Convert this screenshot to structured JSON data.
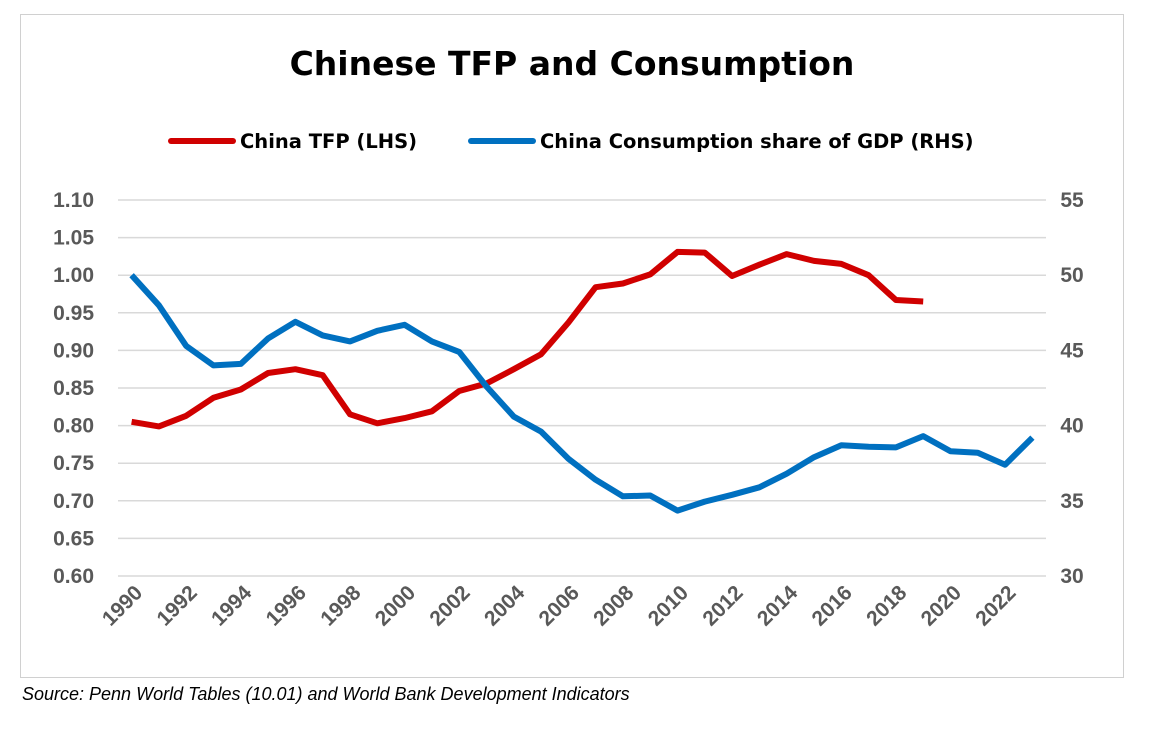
{
  "chart_data": {
    "type": "line",
    "title": "Chinese TFP and Consumption",
    "source": "Source: Penn World Tables (10.01) and World Bank Development Indicators",
    "x": [
      1990,
      1991,
      1992,
      1993,
      1994,
      1995,
      1996,
      1997,
      1998,
      1999,
      2000,
      2001,
      2002,
      2003,
      2004,
      2005,
      2006,
      2007,
      2008,
      2009,
      2010,
      2011,
      2012,
      2013,
      2014,
      2015,
      2016,
      2017,
      2018,
      2019,
      2020,
      2021,
      2022,
      2023
    ],
    "x_tick_labels": [
      "1990",
      "1992",
      "1994",
      "1996",
      "1998",
      "2000",
      "2002",
      "2004",
      "2006",
      "2008",
      "2010",
      "2012",
      "2014",
      "2016",
      "2018",
      "2020",
      "2022"
    ],
    "y_left": {
      "lim": [
        0.6,
        1.1
      ],
      "ticks": [
        "0.60",
        "0.65",
        "0.70",
        "0.75",
        "0.80",
        "0.85",
        "0.90",
        "0.95",
        "1.00",
        "1.05",
        "1.10"
      ]
    },
    "y_right": {
      "lim": [
        30,
        55
      ],
      "ticks": [
        "30",
        "35",
        "40",
        "45",
        "50",
        "55"
      ]
    },
    "grid": true,
    "legend_position": "top",
    "series": [
      {
        "name": "China TFP (LHS)",
        "axis": "left",
        "color": "#d00000",
        "values": [
          0.805,
          0.799,
          0.813,
          0.837,
          0.848,
          0.87,
          0.875,
          0.867,
          0.815,
          0.803,
          0.81,
          0.819,
          0.846,
          0.856,
          0.875,
          0.895,
          0.937,
          0.984,
          0.989,
          1.001,
          1.031,
          1.03,
          0.999,
          1.014,
          1.028,
          1.019,
          1.015,
          1.0,
          0.967,
          0.965,
          null,
          null,
          null,
          null
        ]
      },
      {
        "name": "China Consumption share of GDP (RHS)",
        "axis": "right",
        "color": "#0070c0",
        "values": [
          50.0,
          48.0,
          45.3,
          44.0,
          44.1,
          45.8,
          46.9,
          46.0,
          45.6,
          46.3,
          46.7,
          45.6,
          44.9,
          42.6,
          40.6,
          39.6,
          37.8,
          36.4,
          35.3,
          35.35,
          34.35,
          34.95,
          35.4,
          35.9,
          36.8,
          37.9,
          38.7,
          38.6,
          38.55,
          39.3,
          38.3,
          38.2,
          37.4,
          39.2
        ]
      }
    ]
  }
}
